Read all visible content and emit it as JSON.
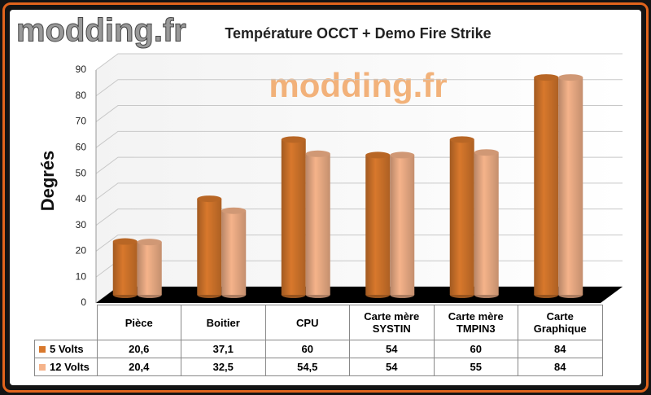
{
  "chart_data": {
    "type": "bar3d",
    "title": "Température OCCT + Demo Fire Strike",
    "logo": "modding.fr",
    "watermark": "modding.fr",
    "y_label": "Degrés",
    "categories": [
      "Pièce",
      "Boitier",
      "CPU",
      "Carte mère SYSTIN",
      "Carte mère TMPIN3",
      "Carte Graphique"
    ],
    "series": [
      {
        "name": "5 Volts",
        "color": "#d8782c",
        "values": [
          20.6,
          37.1,
          60,
          54,
          60,
          84
        ],
        "value_labels": [
          "20,6",
          "37,1",
          "60",
          "54",
          "60",
          "84"
        ]
      },
      {
        "name": "12 Volts",
        "color": "#f5b38a",
        "values": [
          20.4,
          32.5,
          54.5,
          54,
          55,
          84
        ],
        "value_labels": [
          "20,4",
          "32,5",
          "54,5",
          "54",
          "55",
          "84"
        ]
      }
    ],
    "ylim": [
      0,
      90
    ],
    "yticks": [
      0,
      10,
      20,
      30,
      40,
      50,
      60,
      70,
      80,
      90
    ],
    "grid": true
  }
}
